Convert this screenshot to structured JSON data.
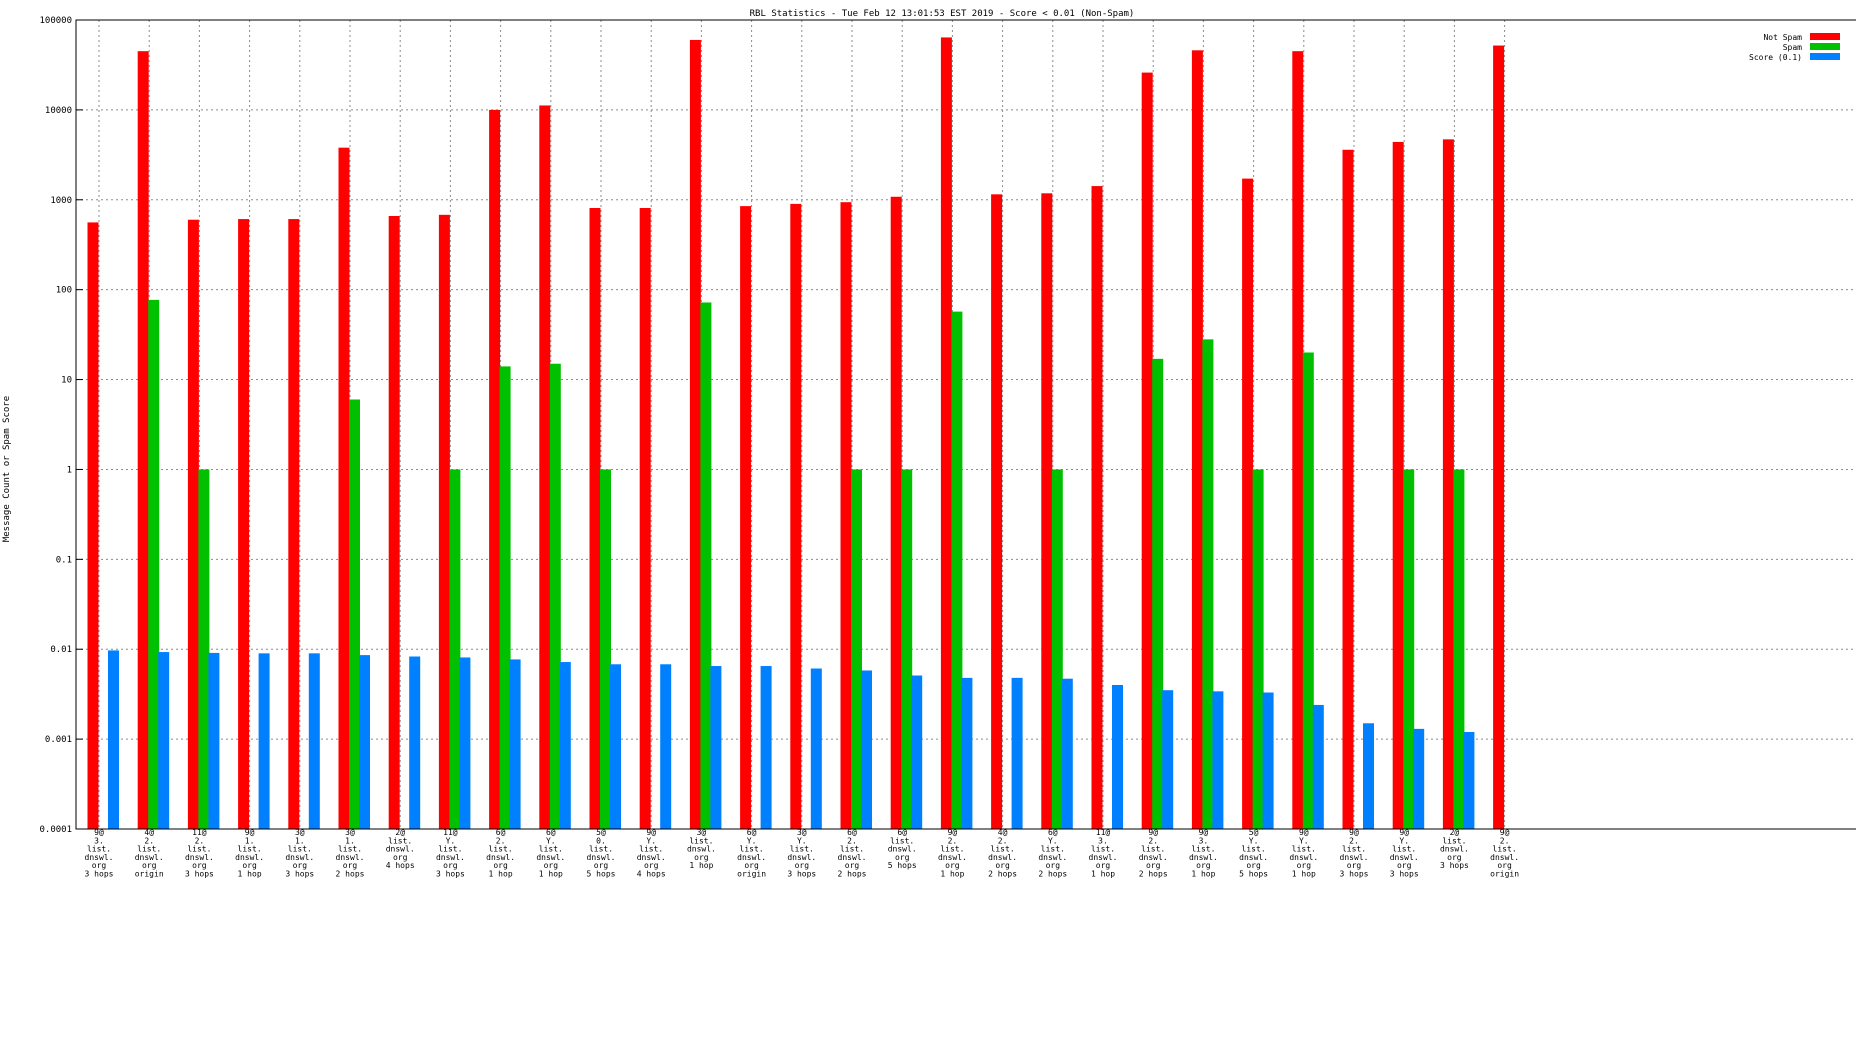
{
  "chart_data": {
    "type": "bar",
    "title": "RBL Statistics - Tue Feb 12 13:01:53 EST 2019 - Score < 0.01 (Non-Spam)",
    "xlabel": "",
    "ylabel": "Message Count or Spam Score",
    "yscale": "log",
    "ylim": [
      0.0001,
      100000
    ],
    "yticks": [
      "0.0001",
      "0.001",
      "0.01",
      "0.1",
      "1",
      "10",
      "100",
      "1000",
      "10000",
      "100000"
    ],
    "grid": true,
    "legend_position": "top-right",
    "categories": [
      [
        "9@",
        "3.",
        "list.",
        "dnswl.",
        "org",
        "3 hops"
      ],
      [
        "4@",
        "2.",
        "list.",
        "dnswl.",
        "org",
        "origin"
      ],
      [
        "11@",
        "2.",
        "list.",
        "dnswl.",
        "org",
        "3 hops"
      ],
      [
        "9@",
        "1.",
        "list.",
        "dnswl.",
        "org",
        "1 hop"
      ],
      [
        "3@",
        "1.",
        "list.",
        "dnswl.",
        "org",
        "3 hops"
      ],
      [
        "3@",
        "1.",
        "list.",
        "dnswl.",
        "org",
        "2 hops"
      ],
      [
        "2@",
        "list.",
        "dnswl.",
        "org",
        "4 hops"
      ],
      [
        "11@",
        "Y.",
        "list.",
        "dnswl.",
        "org",
        "3 hops"
      ],
      [
        "6@",
        "2.",
        "list.",
        "dnswl.",
        "org",
        "1 hop"
      ],
      [
        "6@",
        "Y.",
        "list.",
        "dnswl.",
        "org",
        "1 hop"
      ],
      [
        "5@",
        "0.",
        "list.",
        "dnswl.",
        "org",
        "5 hops"
      ],
      [
        "9@",
        "Y.",
        "list.",
        "dnswl.",
        "org",
        "4 hops"
      ],
      [
        "3@",
        "list.",
        "dnswl.",
        "org",
        "1 hop"
      ],
      [
        "6@",
        "Y.",
        "list.",
        "dnswl.",
        "org",
        "origin"
      ],
      [
        "3@",
        "Y.",
        "list.",
        "dnswl.",
        "org",
        "3 hops"
      ],
      [
        "6@",
        "2.",
        "list.",
        "dnswl.",
        "org",
        "2 hops"
      ],
      [
        "6@",
        "list.",
        "dnswl.",
        "org",
        "5 hops"
      ],
      [
        "9@",
        "2.",
        "list.",
        "dnswl.",
        "org",
        "1 hop"
      ],
      [
        "4@",
        "2.",
        "list.",
        "dnswl.",
        "org",
        "2 hops"
      ],
      [
        "6@",
        "Y.",
        "list.",
        "dnswl.",
        "org",
        "2 hops"
      ],
      [
        "11@",
        "3.",
        "list.",
        "dnswl.",
        "org",
        "1 hop"
      ],
      [
        "9@",
        "2.",
        "list.",
        "dnswl.",
        "org",
        "2 hops"
      ],
      [
        "9@",
        "3.",
        "list.",
        "dnswl.",
        "org",
        "1 hop"
      ],
      [
        "5@",
        "Y.",
        "list.",
        "dnswl.",
        "org",
        "5 hops"
      ],
      [
        "9@",
        "Y.",
        "list.",
        "dnswl.",
        "org",
        "1 hop"
      ],
      [
        "9@",
        "2.",
        "list.",
        "dnswl.",
        "org",
        "3 hops"
      ],
      [
        "9@",
        "Y.",
        "list.",
        "dnswl.",
        "org",
        "3 hops"
      ],
      [
        "2@",
        "list.",
        "dnswl.",
        "org",
        "3 hops"
      ],
      [
        "9@",
        "2.",
        "list.",
        "dnswl.",
        "org",
        "origin"
      ]
    ],
    "series": [
      {
        "name": "Not Spam",
        "color": "#ff0000",
        "values": [
          560,
          45000,
          600,
          610,
          610,
          3800,
          660,
          680,
          10000,
          11200,
          810,
          810,
          60000,
          850,
          900,
          940,
          1080,
          64000,
          1150,
          1180,
          1420,
          26000,
          46000,
          1720,
          45000,
          3600,
          4400,
          4700,
          52000
        ]
      },
      {
        "name": "Spam",
        "color": "#00c000",
        "values": [
          null,
          77,
          1,
          null,
          null,
          6,
          null,
          1,
          14,
          15,
          1,
          null,
          72,
          null,
          null,
          1,
          1,
          57,
          null,
          1,
          null,
          17,
          28,
          1,
          20,
          null,
          1,
          1,
          null
        ]
      },
      {
        "name": "Score (0.1)",
        "color": "#0080ff",
        "values": [
          0.0097,
          0.0093,
          0.0091,
          0.009,
          0.009,
          0.0086,
          0.0083,
          0.0081,
          0.0077,
          0.0072,
          0.0068,
          0.0068,
          0.0065,
          0.0065,
          0.0061,
          0.0058,
          0.0051,
          0.0048,
          0.0048,
          0.0047,
          0.004,
          0.0035,
          0.0034,
          0.0033,
          0.0024,
          0.0015,
          0.0013,
          0.0012,
          null
        ]
      }
    ]
  }
}
